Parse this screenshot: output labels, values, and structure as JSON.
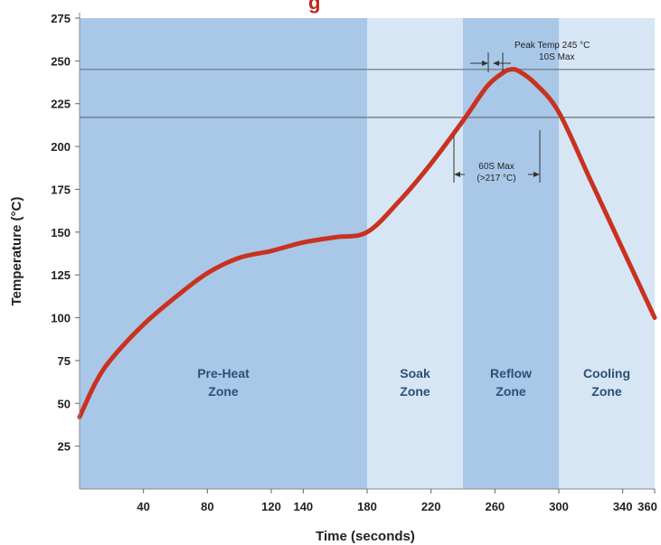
{
  "chart_data": {
    "type": "line",
    "title_fragment": "g",
    "xlabel": "Time (seconds)",
    "ylabel": "Temperature (°C)",
    "xlim": [
      0,
      360
    ],
    "ylim": [
      0,
      275
    ],
    "x_ticks": [
      40,
      80,
      120,
      140,
      180,
      220,
      260,
      300,
      340,
      360
    ],
    "y_ticks": [
      25,
      50,
      75,
      100,
      125,
      150,
      175,
      200,
      225,
      250,
      275
    ],
    "grid": false,
    "zones": [
      {
        "label_line1": "Pre-Heat",
        "label_line2": "Zone",
        "x_start": 0,
        "x_end": 180,
        "color": "#a9c8e8"
      },
      {
        "label_line1": "Soak",
        "label_line2": "Zone",
        "x_start": 180,
        "x_end": 240,
        "color": "#d6e6f5"
      },
      {
        "label_line1": "Reflow",
        "label_line2": "Zone",
        "x_start": 240,
        "x_end": 300,
        "color": "#a9c8e8"
      },
      {
        "label_line1": "Cooling",
        "label_line2": "Zone",
        "x_start": 300,
        "x_end": 360,
        "color": "#d6e6f5"
      }
    ],
    "reference_lines": [
      245,
      217
    ],
    "annotations": [
      {
        "line1": "Peak Temp 245 °C",
        "line2": "10S Max"
      },
      {
        "line1": "60S Max",
        "line2": "(>217 °C)"
      }
    ],
    "series": [
      {
        "color": "#c9321f",
        "x": [
          0,
          10,
          20,
          40,
          60,
          80,
          100,
          120,
          140,
          160,
          180,
          200,
          220,
          240,
          255,
          265,
          270,
          275,
          285,
          300,
          320,
          340,
          360
        ],
        "y": [
          42,
          62,
          76,
          96,
          112,
          126,
          135,
          139,
          144,
          147,
          150,
          168,
          190,
          215,
          235,
          243,
          245,
          244,
          237,
          220,
          180,
          140,
          100
        ]
      }
    ]
  }
}
